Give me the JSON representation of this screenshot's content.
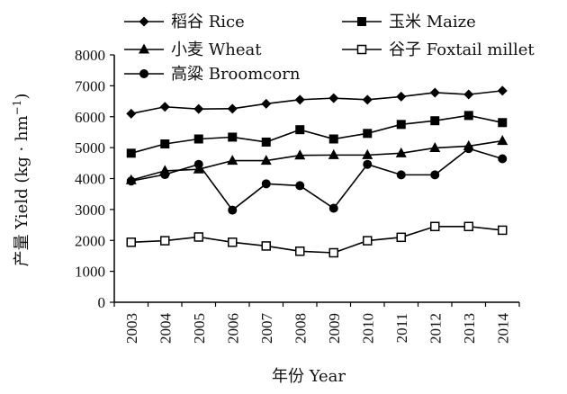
{
  "chart_data": {
    "type": "line",
    "xlabel": "年份 Year",
    "ylabel": "产量 Yield (kg · hm",
    "ylabel_sup": "−1",
    "ylabel_close": ")",
    "ylim": [
      0,
      8000
    ],
    "yticks": [
      "0",
      "1000",
      "2000",
      "3000",
      "4000",
      "5000",
      "6000",
      "7000",
      "8000"
    ],
    "x": [
      "2003",
      "2004",
      "2005",
      "2006",
      "2007",
      "2008",
      "2009",
      "2010",
      "2011",
      "2012",
      "2013",
      "2014"
    ],
    "grid": false,
    "legend_position": "top",
    "series": [
      {
        "name": "稻谷 Rice",
        "marker": "diamond",
        "color": "#000000",
        "values": [
          6100,
          6320,
          6250,
          6260,
          6420,
          6550,
          6600,
          6550,
          6650,
          6780,
          6720,
          6840
        ]
      },
      {
        "name": "玉米 Maize",
        "marker": "square-filled",
        "color": "#000000",
        "values": [
          4820,
          5120,
          5280,
          5340,
          5180,
          5580,
          5280,
          5460,
          5750,
          5870,
          6040,
          5810
        ]
      },
      {
        "name": "小麦 Wheat",
        "marker": "triangle",
        "color": "#000000",
        "values": [
          3950,
          4250,
          4300,
          4580,
          4580,
          4750,
          4760,
          4760,
          4820,
          4990,
          5050,
          5220
        ]
      },
      {
        "name": "谷子 Foxtail millet",
        "marker": "square-open",
        "color": "#000000",
        "values": [
          1940,
          1990,
          2110,
          1940,
          1820,
          1650,
          1600,
          1990,
          2100,
          2450,
          2450,
          2330
        ]
      },
      {
        "name": "高粱 Broomcorn",
        "marker": "circle",
        "color": "#000000",
        "values": [
          3920,
          4130,
          4460,
          2980,
          3830,
          3770,
          3040,
          4460,
          4120,
          4120,
          4970,
          4640
        ]
      }
    ]
  }
}
